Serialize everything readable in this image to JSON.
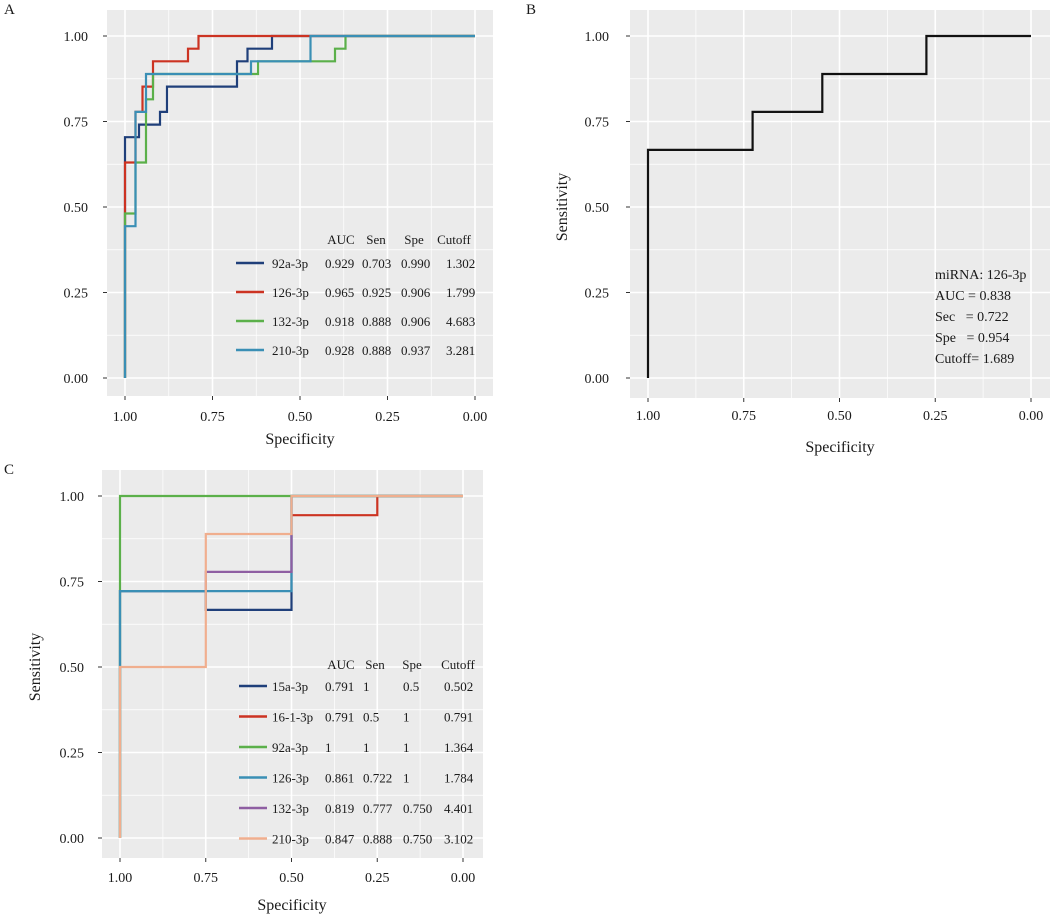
{
  "chart_data": [
    {
      "panel": "A",
      "type": "line",
      "subtype": "roc",
      "xlabel": "Specificity",
      "ylabel": "",
      "xlim": [
        1.0,
        0.0
      ],
      "ylim": [
        0.0,
        1.0
      ],
      "xticks": [
        "1.00",
        "0.75",
        "0.50",
        "0.25",
        "0.00"
      ],
      "yticks": [
        "0.00",
        "0.25",
        "0.50",
        "0.75",
        "1.00"
      ],
      "grid": true,
      "legend_position": "bottom-right",
      "legend_header": [
        "AUC",
        "Sen",
        "Spe",
        "Cutoff"
      ],
      "series": [
        {
          "name": "92a-3p",
          "color": "#1f3f7a",
          "stats": [
            "0.929",
            "0.703",
            "0.990",
            "1.302"
          ],
          "points": [
            [
              1.0,
              0.0
            ],
            [
              1.0,
              0.704
            ],
            [
              0.96,
              0.704
            ],
            [
              0.96,
              0.741
            ],
            [
              0.9,
              0.741
            ],
            [
              0.9,
              0.778
            ],
            [
              0.88,
              0.778
            ],
            [
              0.88,
              0.852
            ],
            [
              0.68,
              0.852
            ],
            [
              0.68,
              0.926
            ],
            [
              0.65,
              0.926
            ],
            [
              0.65,
              0.963
            ],
            [
              0.58,
              0.963
            ],
            [
              0.58,
              1.0
            ],
            [
              0.0,
              1.0
            ]
          ]
        },
        {
          "name": "126-3p",
          "color": "#cc3322",
          "stats": [
            "0.965",
            "0.925",
            "0.906",
            "1.799"
          ],
          "points": [
            [
              1.0,
              0.0
            ],
            [
              1.0,
              0.63
            ],
            [
              0.97,
              0.63
            ],
            [
              0.97,
              0.778
            ],
            [
              0.95,
              0.778
            ],
            [
              0.95,
              0.852
            ],
            [
              0.92,
              0.852
            ],
            [
              0.92,
              0.926
            ],
            [
              0.82,
              0.926
            ],
            [
              0.82,
              0.963
            ],
            [
              0.79,
              0.963
            ],
            [
              0.79,
              1.0
            ],
            [
              0.0,
              1.0
            ]
          ]
        },
        {
          "name": "132-3p",
          "color": "#5bb04a",
          "stats": [
            "0.918",
            "0.888",
            "0.906",
            "4.683"
          ],
          "points": [
            [
              1.0,
              0.0
            ],
            [
              1.0,
              0.481
            ],
            [
              0.97,
              0.481
            ],
            [
              0.97,
              0.63
            ],
            [
              0.94,
              0.63
            ],
            [
              0.94,
              0.815
            ],
            [
              0.92,
              0.815
            ],
            [
              0.92,
              0.889
            ],
            [
              0.62,
              0.889
            ],
            [
              0.62,
              0.926
            ],
            [
              0.4,
              0.926
            ],
            [
              0.4,
              0.963
            ],
            [
              0.37,
              0.963
            ],
            [
              0.37,
              1.0
            ],
            [
              0.0,
              1.0
            ]
          ]
        },
        {
          "name": "210-3p",
          "color": "#3a8fb5",
          "stats": [
            "0.928",
            "0.888",
            "0.937",
            "3.281"
          ],
          "points": [
            [
              1.0,
              0.0
            ],
            [
              1.0,
              0.444
            ],
            [
              0.97,
              0.444
            ],
            [
              0.97,
              0.778
            ],
            [
              0.94,
              0.778
            ],
            [
              0.94,
              0.889
            ],
            [
              0.64,
              0.889
            ],
            [
              0.64,
              0.926
            ],
            [
              0.47,
              0.926
            ],
            [
              0.47,
              1.0
            ],
            [
              0.0,
              1.0
            ]
          ]
        }
      ]
    },
    {
      "panel": "B",
      "type": "line",
      "subtype": "roc",
      "xlabel": "Specificity",
      "ylabel": "Sensitivity",
      "xlim": [
        1.0,
        0.0
      ],
      "ylim": [
        0.0,
        1.0
      ],
      "xticks": [
        "1.00",
        "0.75",
        "0.50",
        "0.25",
        "0.00"
      ],
      "yticks": [
        "0.00",
        "0.25",
        "0.50",
        "0.75",
        "1.00"
      ],
      "grid": true,
      "annotation": [
        "miRNA: 126-3p",
        "AUC = 0.838",
        "Sec   = 0.722",
        "Spe   = 0.954",
        "Cutoff= 1.689"
      ],
      "series": [
        {
          "name": "126-3p",
          "color": "#111111",
          "points": [
            [
              1.0,
              0.0
            ],
            [
              1.0,
              0.667
            ],
            [
              0.727,
              0.667
            ],
            [
              0.727,
              0.778
            ],
            [
              0.545,
              0.778
            ],
            [
              0.545,
              0.889
            ],
            [
              0.273,
              0.889
            ],
            [
              0.273,
              1.0
            ],
            [
              0.0,
              1.0
            ]
          ]
        }
      ]
    },
    {
      "panel": "C",
      "type": "line",
      "subtype": "roc",
      "xlabel": "Specificity",
      "ylabel": "Sensitivity",
      "xlim": [
        1.0,
        0.0
      ],
      "ylim": [
        0.0,
        1.0
      ],
      "xticks": [
        "1.00",
        "0.75",
        "0.50",
        "0.25",
        "0.00"
      ],
      "yticks": [
        "0.00",
        "0.25",
        "0.50",
        "0.75",
        "1.00"
      ],
      "grid": true,
      "legend_position": "bottom-right",
      "legend_header": [
        "AUC",
        "Sen",
        "Spe",
        "Cutoff"
      ],
      "series": [
        {
          "name": "15a-3p",
          "color": "#1f3f7a",
          "stats": [
            "0.791",
            "1",
            "0.5",
            "0.502"
          ],
          "points": [
            [
              1.0,
              0.0
            ],
            [
              1.0,
              0.722
            ],
            [
              0.75,
              0.722
            ],
            [
              0.75,
              0.667
            ],
            [
              0.5,
              0.667
            ],
            [
              0.5,
              1.0
            ],
            [
              0.0,
              1.0
            ]
          ]
        },
        {
          "name": "16-1-3p",
          "color": "#cc3322",
          "stats": [
            "0.791",
            "0.5",
            "1",
            "0.791"
          ],
          "points": [
            [
              0.5,
              0.944
            ],
            [
              0.25,
              0.944
            ],
            [
              0.25,
              1.0
            ],
            [
              0.0,
              1.0
            ]
          ]
        },
        {
          "name": "92a-3p",
          "color": "#5bb04a",
          "stats": [
            "1",
            "1",
            "1",
            "1.364"
          ],
          "points": [
            [
              1.0,
              0.0
            ],
            [
              1.0,
              1.0
            ],
            [
              0.0,
              1.0
            ]
          ]
        },
        {
          "name": "126-3p",
          "color": "#3a8fb5",
          "stats": [
            "0.861",
            "0.722",
            "1",
            "1.784"
          ],
          "points": [
            [
              1.0,
              0.0
            ],
            [
              1.0,
              0.722
            ],
            [
              0.5,
              0.722
            ],
            [
              0.5,
              1.0
            ],
            [
              0.0,
              1.0
            ]
          ]
        },
        {
          "name": "132-3p",
          "color": "#8e5ea2",
          "stats": [
            "0.819",
            "0.777",
            "0.750",
            "4.401"
          ],
          "points": [
            [
              0.75,
              0.722
            ],
            [
              0.75,
              0.778
            ],
            [
              0.5,
              0.778
            ],
            [
              0.5,
              0.889
            ]
          ]
        },
        {
          "name": "210-3p",
          "color": "#f0ae8e",
          "stats": [
            "0.847",
            "0.888",
            "0.750",
            "3.102"
          ],
          "points": [
            [
              1.0,
              0.0
            ],
            [
              1.0,
              0.5
            ],
            [
              0.75,
              0.5
            ],
            [
              0.75,
              0.889
            ],
            [
              0.5,
              0.889
            ],
            [
              0.5,
              1.0
            ],
            [
              0.0,
              1.0
            ]
          ]
        }
      ]
    }
  ]
}
